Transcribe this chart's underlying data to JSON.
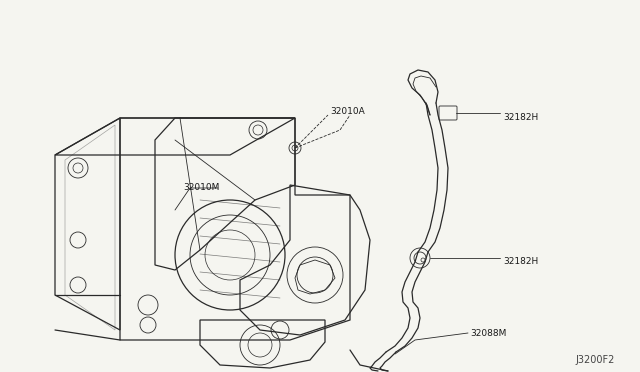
{
  "background_color": "#f5f5f0",
  "line_color": "#2a2a2a",
  "label_color": "#1a1a1a",
  "fig_id": "J3200F2",
  "fig_width": 6.4,
  "fig_height": 3.72,
  "dpi": 100,
  "label_texts": {
    "32010M": "32010M",
    "32010A": "32010A",
    "32182H_top": "32182H",
    "32182H_mid": "32182H",
    "32088M": "32088M"
  }
}
